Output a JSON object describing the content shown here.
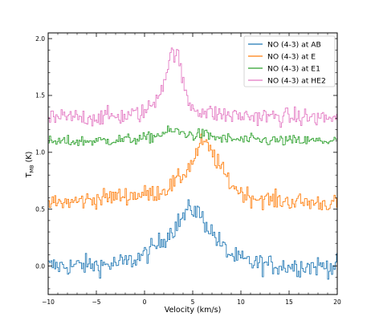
{
  "chart_data": {
    "type": "line",
    "title": "",
    "xlabel": "Velocity (km/s)",
    "ylabel": {
      "main": "T",
      "sub": "MB",
      "unit": " (K)"
    },
    "xlim": [
      -10,
      20
    ],
    "ylim": [
      -0.25,
      2.05
    ],
    "x_ticks": [
      "−10",
      "−5",
      "0",
      "5",
      "10",
      "15",
      "20"
    ],
    "x_tick_values": [
      -10,
      -5,
      0,
      5,
      10,
      15,
      20
    ],
    "y_ticks": [
      "0.0",
      "0.5",
      "1.0",
      "1.5",
      "2.0"
    ],
    "y_tick_values": [
      0.0,
      0.5,
      1.0,
      1.5,
      2.0
    ],
    "grid": false,
    "legend_position": "top-right",
    "series": [
      {
        "name": "NO (4-3) at AB",
        "color": "#1f77b4",
        "baseline": 0.0,
        "noise": 0.045,
        "x": [
          -10,
          -8,
          -6,
          -4,
          -2,
          -1,
          0,
          1,
          2,
          3,
          4,
          4.8,
          5.5,
          6.5,
          7.5,
          8.5,
          9.5,
          11,
          13,
          15,
          17,
          20
        ],
        "y": [
          0.0,
          0.0,
          0.01,
          0.01,
          0.03,
          0.06,
          0.1,
          0.16,
          0.24,
          0.33,
          0.43,
          0.51,
          0.48,
          0.36,
          0.24,
          0.13,
          0.07,
          0.03,
          0.01,
          0.0,
          0.0,
          0.0
        ]
      },
      {
        "name": "NO (4-3) at E",
        "color": "#ff7f0e",
        "baseline": 0.55,
        "noise": 0.04,
        "x": [
          -10,
          -8,
          -6,
          -4,
          -2,
          0,
          1,
          2,
          3,
          4,
          5,
          6,
          7,
          8,
          9,
          10,
          11,
          13,
          15,
          17,
          20
        ],
        "y": [
          0.55,
          0.56,
          0.58,
          0.6,
          0.62,
          0.63,
          0.64,
          0.67,
          0.72,
          0.8,
          0.92,
          1.1,
          1.0,
          0.85,
          0.72,
          0.65,
          0.61,
          0.58,
          0.57,
          0.56,
          0.55
        ]
      },
      {
        "name": "NO (4-3) at E1",
        "color": "#2ca02c",
        "baseline": 1.1,
        "noise": 0.025,
        "x": [
          -10,
          -5,
          0,
          1,
          2,
          3,
          4,
          5,
          6,
          7,
          8,
          10,
          15,
          20
        ],
        "y": [
          1.09,
          1.1,
          1.12,
          1.14,
          1.17,
          1.19,
          1.17,
          1.15,
          1.16,
          1.14,
          1.12,
          1.11,
          1.1,
          1.1
        ]
      },
      {
        "name": "NO (4-3) at HE2",
        "color": "#e377c2",
        "baseline": 1.3,
        "noise": 0.04,
        "x": [
          -10,
          -5,
          -2,
          0,
          1,
          2,
          2.7,
          3.3,
          4,
          4.5,
          5,
          6,
          8,
          10,
          15,
          20
        ],
        "y": [
          1.3,
          1.31,
          1.32,
          1.35,
          1.44,
          1.62,
          1.85,
          1.9,
          1.62,
          1.45,
          1.4,
          1.36,
          1.33,
          1.32,
          1.31,
          1.3
        ]
      }
    ]
  }
}
